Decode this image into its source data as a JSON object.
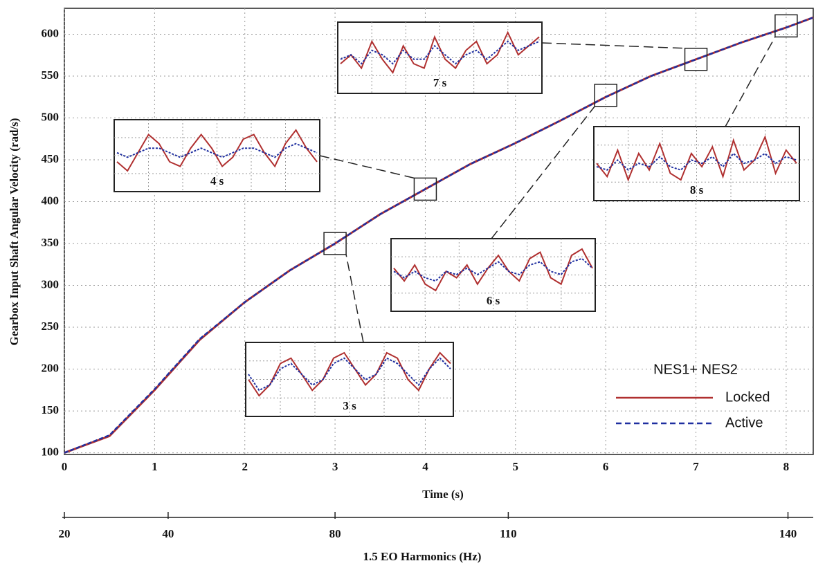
{
  "chart_data": {
    "type": "line",
    "x_label": "Time (s)",
    "y_label": "Gearbox Input Shaft Angular Velocity (rad/s)",
    "xlim": [
      0,
      8.3
    ],
    "ylim": [
      98,
      631
    ],
    "xticks": [
      0,
      1,
      2,
      3,
      4,
      5,
      6,
      7,
      8
    ],
    "yticks": [
      100,
      150,
      200,
      250,
      300,
      350,
      400,
      450,
      500,
      550,
      600
    ],
    "grid": true,
    "x": [
      0,
      0.5,
      1,
      1.5,
      2,
      2.5,
      3,
      3.5,
      4,
      4.5,
      5,
      5.5,
      6,
      6.5,
      7,
      7.5,
      8,
      8.3
    ],
    "series": [
      {
        "name": "Locked",
        "color": "#b03030",
        "values": [
          100,
          120,
          175,
          235,
          280,
          318,
          350,
          385,
          415,
          445,
          470,
          497,
          525,
          550,
          570,
          590,
          608,
          620
        ]
      },
      {
        "name": "Active",
        "color": "#1f2fa0",
        "values": [
          100,
          121,
          176,
          236,
          280,
          318,
          350,
          385,
          415,
          445,
          470,
          497,
          525,
          550,
          570,
          590,
          608,
          620
        ]
      }
    ],
    "legend_title": "NES1+ NES2",
    "legend": "lower right",
    "x2": {
      "label": "1.5 EO Harmonics (Hz)",
      "ticks": [
        20,
        40,
        80,
        110,
        140
      ],
      "time": [
        0,
        1.15,
        3.0,
        4.92,
        8.02
      ]
    },
    "insets": [
      {
        "label": "3 s",
        "time": 3,
        "value": 350,
        "locked_values": [
          348,
          345,
          347,
          351,
          352,
          349,
          346,
          348,
          352,
          353,
          350,
          347,
          349,
          353,
          352,
          348,
          346,
          350,
          353,
          351
        ],
        "active_values": [
          349,
          346,
          347,
          350,
          351,
          349,
          347,
          348,
          351,
          352,
          350,
          348,
          349,
          352,
          351,
          349,
          347,
          350,
          352,
          350
        ]
      },
      {
        "label": "4 s",
        "time": 4,
        "value": 415,
        "locked_values": [
          413,
          411,
          415,
          419,
          417,
          413,
          412,
          416,
          419,
          416,
          412,
          414,
          418,
          419,
          415,
          412,
          417,
          420,
          416,
          413
        ],
        "active_values": [
          415,
          414,
          415,
          416,
          416,
          415,
          414,
          415,
          416,
          415,
          414,
          415,
          416,
          416,
          415,
          414,
          416,
          417,
          416,
          415
        ]
      },
      {
        "label": "6 s",
        "time": 6,
        "value": 527,
        "locked_values": [
          527,
          523,
          528,
          522,
          520,
          526,
          524,
          528,
          522,
          527,
          531,
          526,
          523,
          530,
          532,
          524,
          522,
          531,
          533,
          527
        ],
        "active_values": [
          526,
          524,
          526,
          524,
          523,
          526,
          525,
          527,
          525,
          527,
          529,
          526,
          525,
          528,
          529,
          526,
          525,
          529,
          530,
          527
        ]
      },
      {
        "label": "7 s",
        "time": 7,
        "value": 570,
        "locked_values": [
          567,
          569,
          566,
          572,
          568,
          565,
          571,
          567,
          566,
          573,
          568,
          566,
          570,
          572,
          567,
          569,
          574,
          569,
          571,
          573
        ],
        "active_values": [
          568,
          569,
          567,
          570,
          569,
          567,
          570,
          568,
          568,
          571,
          569,
          567,
          569,
          570,
          568,
          570,
          572,
          570,
          571,
          572
        ]
      },
      {
        "label": "8 s",
        "time": 8,
        "value": 610,
        "locked_values": [
          608,
          604,
          612,
          603,
          611,
          606,
          614,
          605,
          603,
          611,
          607,
          613,
          604,
          615,
          606,
          609,
          616,
          605,
          612,
          608
        ],
        "active_values": [
          607,
          606,
          609,
          606,
          608,
          607,
          610,
          607,
          606,
          609,
          608,
          610,
          607,
          611,
          608,
          609,
          611,
          608,
          610,
          609
        ]
      }
    ]
  }
}
